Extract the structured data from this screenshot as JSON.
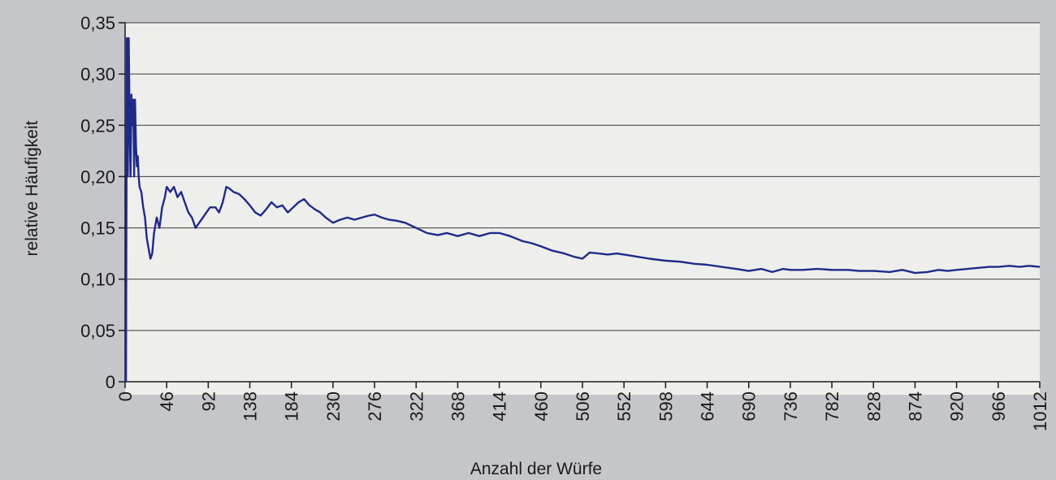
{
  "chart_data": {
    "type": "line",
    "xlabel": "Anzahl der Würfe",
    "ylabel": "relative Häufigkeit",
    "xlim": [
      0,
      1012
    ],
    "ylim": [
      0,
      0.35
    ],
    "grid": "horizontal",
    "x_ticks": [
      0,
      46,
      92,
      138,
      184,
      230,
      276,
      322,
      368,
      414,
      460,
      506,
      552,
      598,
      644,
      690,
      736,
      782,
      828,
      874,
      920,
      966,
      1012
    ],
    "y_ticks": [
      0,
      0.05,
      0.1,
      0.15,
      0.2,
      0.25,
      0.3,
      0.35
    ],
    "y_tick_labels": [
      "0",
      "0,05",
      "0,10",
      "0,15",
      "0,20",
      "0,25",
      "0,30",
      "0,35"
    ],
    "colors": {
      "line": "#1f2a8a",
      "grid": "#3a3a3a",
      "plot_bg": "#eeeeec"
    },
    "series": [
      {
        "values": [
          [
            1,
            0.0
          ],
          [
            2,
            0.335
          ],
          [
            3,
            0.2
          ],
          [
            4,
            0.335
          ],
          [
            5,
            0.25
          ],
          [
            6,
            0.2
          ],
          [
            7,
            0.28
          ],
          [
            8,
            0.25
          ],
          [
            9,
            0.275
          ],
          [
            10,
            0.2
          ],
          [
            11,
            0.275
          ],
          [
            12,
            0.23
          ],
          [
            13,
            0.21
          ],
          [
            14,
            0.22
          ],
          [
            15,
            0.2
          ],
          [
            16,
            0.19
          ],
          [
            18,
            0.185
          ],
          [
            20,
            0.17
          ],
          [
            22,
            0.16
          ],
          [
            24,
            0.14
          ],
          [
            26,
            0.13
          ],
          [
            28,
            0.12
          ],
          [
            30,
            0.125
          ],
          [
            32,
            0.145
          ],
          [
            35,
            0.16
          ],
          [
            38,
            0.15
          ],
          [
            41,
            0.17
          ],
          [
            44,
            0.18
          ],
          [
            46,
            0.19
          ],
          [
            50,
            0.185
          ],
          [
            54,
            0.19
          ],
          [
            58,
            0.18
          ],
          [
            62,
            0.185
          ],
          [
            66,
            0.175
          ],
          [
            70,
            0.165
          ],
          [
            74,
            0.16
          ],
          [
            78,
            0.15
          ],
          [
            82,
            0.155
          ],
          [
            86,
            0.16
          ],
          [
            90,
            0.165
          ],
          [
            94,
            0.17
          ],
          [
            100,
            0.17
          ],
          [
            104,
            0.165
          ],
          [
            108,
            0.175
          ],
          [
            112,
            0.19
          ],
          [
            116,
            0.188
          ],
          [
            120,
            0.185
          ],
          [
            126,
            0.183
          ],
          [
            132,
            0.178
          ],
          [
            138,
            0.172
          ],
          [
            144,
            0.165
          ],
          [
            150,
            0.162
          ],
          [
            156,
            0.168
          ],
          [
            162,
            0.175
          ],
          [
            168,
            0.17
          ],
          [
            174,
            0.172
          ],
          [
            180,
            0.165
          ],
          [
            186,
            0.17
          ],
          [
            192,
            0.175
          ],
          [
            198,
            0.178
          ],
          [
            204,
            0.172
          ],
          [
            210,
            0.168
          ],
          [
            216,
            0.165
          ],
          [
            222,
            0.16
          ],
          [
            230,
            0.155
          ],
          [
            238,
            0.158
          ],
          [
            246,
            0.16
          ],
          [
            254,
            0.158
          ],
          [
            262,
            0.16
          ],
          [
            270,
            0.162
          ],
          [
            276,
            0.163
          ],
          [
            284,
            0.16
          ],
          [
            292,
            0.158
          ],
          [
            300,
            0.157
          ],
          [
            310,
            0.155
          ],
          [
            322,
            0.15
          ],
          [
            334,
            0.145
          ],
          [
            346,
            0.143
          ],
          [
            356,
            0.145
          ],
          [
            368,
            0.142
          ],
          [
            380,
            0.145
          ],
          [
            392,
            0.142
          ],
          [
            404,
            0.145
          ],
          [
            414,
            0.145
          ],
          [
            426,
            0.142
          ],
          [
            440,
            0.137
          ],
          [
            450,
            0.135
          ],
          [
            460,
            0.132
          ],
          [
            472,
            0.128
          ],
          [
            486,
            0.125
          ],
          [
            496,
            0.122
          ],
          [
            506,
            0.12
          ],
          [
            514,
            0.126
          ],
          [
            524,
            0.125
          ],
          [
            534,
            0.124
          ],
          [
            544,
            0.125
          ],
          [
            552,
            0.124
          ],
          [
            566,
            0.122
          ],
          [
            580,
            0.12
          ],
          [
            598,
            0.118
          ],
          [
            614,
            0.117
          ],
          [
            630,
            0.115
          ],
          [
            644,
            0.114
          ],
          [
            660,
            0.112
          ],
          [
            676,
            0.11
          ],
          [
            690,
            0.108
          ],
          [
            704,
            0.11
          ],
          [
            716,
            0.107
          ],
          [
            728,
            0.11
          ],
          [
            736,
            0.109
          ],
          [
            750,
            0.109
          ],
          [
            766,
            0.11
          ],
          [
            782,
            0.109
          ],
          [
            800,
            0.109
          ],
          [
            812,
            0.108
          ],
          [
            828,
            0.108
          ],
          [
            846,
            0.107
          ],
          [
            860,
            0.109
          ],
          [
            874,
            0.106
          ],
          [
            888,
            0.107
          ],
          [
            900,
            0.109
          ],
          [
            910,
            0.108
          ],
          [
            920,
            0.109
          ],
          [
            932,
            0.11
          ],
          [
            944,
            0.111
          ],
          [
            956,
            0.112
          ],
          [
            966,
            0.112
          ],
          [
            978,
            0.113
          ],
          [
            990,
            0.112
          ],
          [
            1000,
            0.113
          ],
          [
            1012,
            0.112
          ]
        ]
      }
    ]
  }
}
